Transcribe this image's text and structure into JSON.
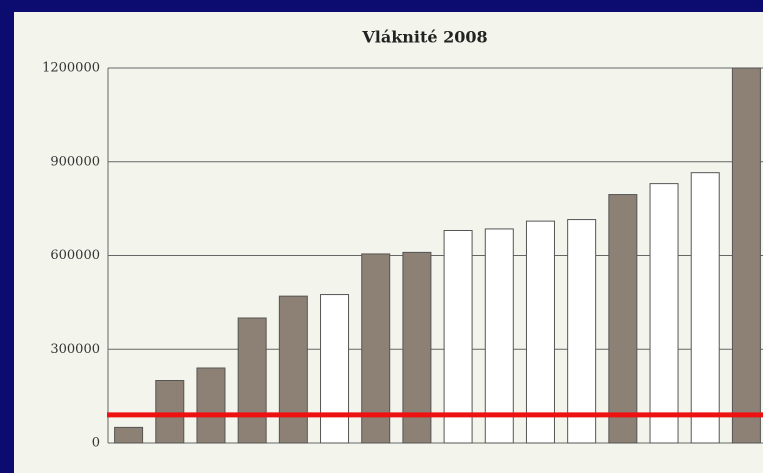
{
  "chart_data": {
    "type": "bar",
    "title": "Vláknité 2008",
    "categories": [
      null,
      null,
      null,
      null,
      null,
      null,
      null,
      null,
      null,
      null,
      null,
      null,
      null,
      null,
      null,
      null
    ],
    "values": [
      50000,
      200000,
      240000,
      400000,
      470000,
      475000,
      605000,
      610000,
      680000,
      685000,
      710000,
      715000,
      795000,
      830000,
      865000,
      1200000
    ],
    "colors": [
      "#8c8174",
      "#8c8174",
      "#8c8174",
      "#8c8174",
      "#8c8174",
      "#ffffff",
      "#8c8174",
      "#8c8174",
      "#ffffff",
      "#ffffff",
      "#ffffff",
      "#ffffff",
      "#8c8174",
      "#ffffff",
      "#ffffff",
      "#8c8174"
    ],
    "ylim": [
      0,
      1200000
    ],
    "yticks": [
      0,
      300000,
      600000,
      900000,
      1200000
    ],
    "grid": true,
    "reference_line": {
      "value": 90000,
      "color": "#ee1111"
    }
  }
}
